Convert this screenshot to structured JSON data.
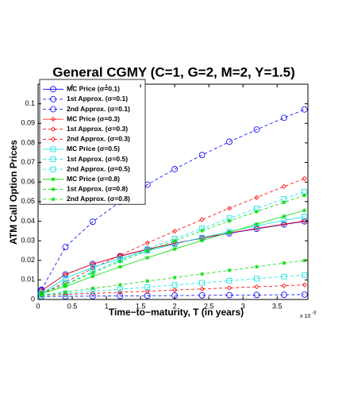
{
  "chart_data": {
    "type": "line",
    "title": "General CGMY (C=1, G=2, M=2, Y=1.5)",
    "x_label": "Time−to−maturity, T (in years)",
    "y_label": "ATM Call Option Prices",
    "x_multiplier": "x 10",
    "x_multiplier_exponent": "-3",
    "x": [
      0.05,
      0.4,
      0.8,
      1.2,
      1.6,
      2.0,
      2.4,
      2.8,
      3.2,
      3.6,
      3.9
    ],
    "xlim": [
      0,
      3.95
    ],
    "xticks": [
      0,
      0.5,
      1,
      1.5,
      2,
      2.5,
      3,
      3.5
    ],
    "ylim": [
      0,
      0.11
    ],
    "yticks": [
      0,
      0.01,
      0.02,
      0.03,
      0.04,
      0.05,
      0.06,
      0.07,
      0.08,
      0.09,
      0.1
    ],
    "grid": false,
    "legend": "upper left",
    "series": [
      {
        "name": "MC Price (σ=0.1)",
        "color": "#0000ff",
        "marker": "circle",
        "dash": "solid",
        "values": [
          0.0045,
          0.0128,
          0.0181,
          0.0221,
          0.0256,
          0.0286,
          0.0313,
          0.0338,
          0.0361,
          0.0383,
          0.0399
        ]
      },
      {
        "name": "1st Approx. (σ=0.1)",
        "color": "#0000ff",
        "marker": "circle",
        "dash": "dashed",
        "values": [
          0.0015,
          0.0016,
          0.0017,
          0.0018,
          0.0019,
          0.002,
          0.0021,
          0.0022,
          0.0023,
          0.0024,
          0.0025
        ]
      },
      {
        "name": "2nd Approx. (σ=0.1)",
        "color": "#0000ff",
        "marker": "circle",
        "dash": "dashed",
        "values": [
          0.005,
          0.0268,
          0.0397,
          0.0499,
          0.0587,
          0.0666,
          0.0738,
          0.0806,
          0.0868,
          0.0928,
          0.0971
        ]
      },
      {
        "name": "MC Price (σ=0.3)",
        "color": "#ff0000",
        "marker": "diamond",
        "dash": "solid",
        "values": [
          0.0045,
          0.0128,
          0.0181,
          0.0222,
          0.0257,
          0.0287,
          0.0314,
          0.034,
          0.0363,
          0.0385,
          0.0401
        ]
      },
      {
        "name": "1st Approx. (σ=0.3)",
        "color": "#ff0000",
        "marker": "diamond",
        "dash": "dashed",
        "values": [
          0.0021,
          0.0026,
          0.0031,
          0.0037,
          0.0042,
          0.0048,
          0.0054,
          0.0059,
          0.0065,
          0.007,
          0.0075
        ]
      },
      {
        "name": "2nd Approx. (σ=0.3)",
        "color": "#ff0000",
        "marker": "diamond",
        "dash": "dashed",
        "values": [
          0.003,
          0.0088,
          0.0159,
          0.0226,
          0.0289,
          0.0349,
          0.0408,
          0.0466,
          0.0521,
          0.0577,
          0.0618
        ]
      },
      {
        "name": "MC Price (σ=0.5)",
        "color": "#00e5e5",
        "marker": "square",
        "dash": "solid",
        "values": [
          0.0031,
          0.0108,
          0.0164,
          0.0209,
          0.0248,
          0.0283,
          0.0316,
          0.0347,
          0.0376,
          0.0404,
          0.0423
        ]
      },
      {
        "name": "1st Approx. (σ=0.5)",
        "color": "#00e5e5",
        "marker": "square",
        "dash": "dashed",
        "values": [
          0.0021,
          0.0031,
          0.0042,
          0.0052,
          0.0063,
          0.0074,
          0.0085,
          0.0096,
          0.0106,
          0.0117,
          0.0125
        ]
      },
      {
        "name": "2nd Approx. (σ=0.5)",
        "color": "#00e5e5",
        "marker": "square",
        "dash": "dashed",
        "values": [
          0.003,
          0.0079,
          0.0142,
          0.0201,
          0.0257,
          0.0311,
          0.0363,
          0.0415,
          0.0465,
          0.0514,
          0.0551
        ]
      },
      {
        "name": "MC Price (σ=0.8)",
        "color": "#00dd00",
        "marker": "star",
        "dash": "solid",
        "values": [
          0.003,
          0.0066,
          0.0118,
          0.0167,
          0.0213,
          0.0258,
          0.0301,
          0.0343,
          0.0385,
          0.0425,
          0.0455
        ]
      },
      {
        "name": "1st Approx. (σ=0.8)",
        "color": "#00dd00",
        "marker": "star",
        "dash": "dashed",
        "values": [
          0.0022,
          0.0038,
          0.0057,
          0.0075,
          0.0094,
          0.0112,
          0.013,
          0.0149,
          0.0167,
          0.0186,
          0.0199
        ]
      },
      {
        "name": "2nd Approx. (σ=0.8)",
        "color": "#00dd00",
        "marker": "star",
        "dash": "dashed",
        "values": [
          0.003,
          0.0076,
          0.0137,
          0.0194,
          0.0248,
          0.03,
          0.0351,
          0.0401,
          0.0449,
          0.0496,
          0.0532
        ]
      }
    ]
  }
}
